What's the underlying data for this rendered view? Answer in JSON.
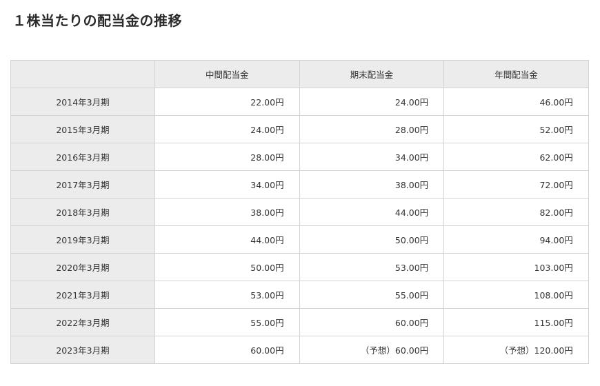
{
  "page": {
    "title": "１株当たりの配当金の推移"
  },
  "table": {
    "headers": [
      "",
      "中間配当金",
      "期末配当金",
      "年間配当金"
    ],
    "rows": [
      {
        "period": "2014年3月期",
        "interim": "22.00円",
        "year_end": "24.00円",
        "annual": "46.00円"
      },
      {
        "period": "2015年3月期",
        "interim": "24.00円",
        "year_end": "28.00円",
        "annual": "52.00円"
      },
      {
        "period": "2016年3月期",
        "interim": "28.00円",
        "year_end": "34.00円",
        "annual": "62.00円"
      },
      {
        "period": "2017年3月期",
        "interim": "34.00円",
        "year_end": "38.00円",
        "annual": "72.00円"
      },
      {
        "period": "2018年3月期",
        "interim": "38.00円",
        "year_end": "44.00円",
        "annual": "82.00円"
      },
      {
        "period": "2019年3月期",
        "interim": "44.00円",
        "year_end": "50.00円",
        "annual": "94.00円"
      },
      {
        "period": "2020年3月期",
        "interim": "50.00円",
        "year_end": "53.00円",
        "annual": "103.00円"
      },
      {
        "period": "2021年3月期",
        "interim": "53.00円",
        "year_end": "55.00円",
        "annual": "108.00円"
      },
      {
        "period": "2022年3月期",
        "interim": "55.00円",
        "year_end": "60.00円",
        "annual": "115.00円"
      },
      {
        "period": "2023年3月期",
        "interim": "60.00円",
        "year_end": "（予想）60.00円",
        "annual": "（予想）120.00円"
      }
    ]
  }
}
